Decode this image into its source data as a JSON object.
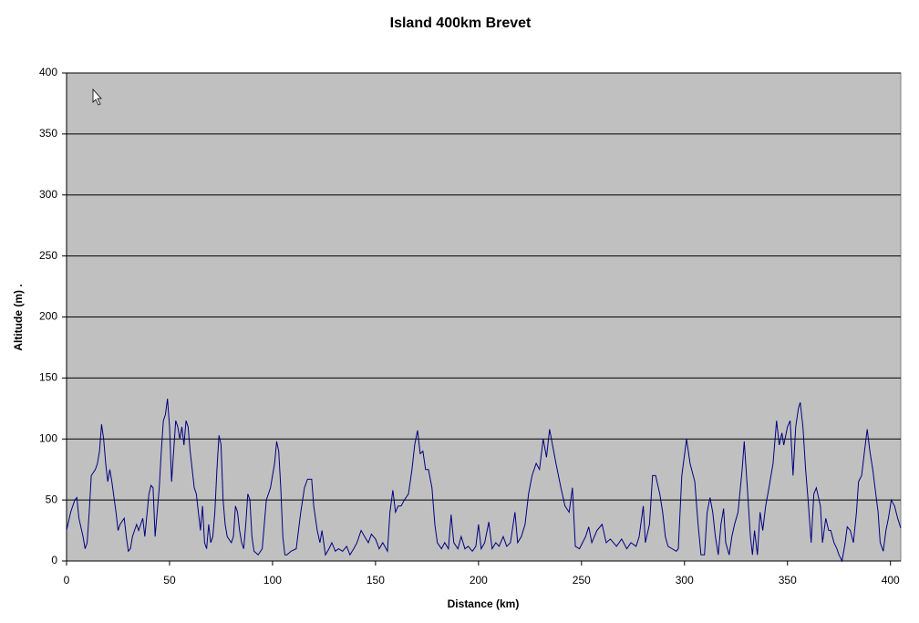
{
  "chart_data": {
    "type": "line",
    "title": "Island 400km Brevet",
    "x_label": "Distance (km)",
    "y_label": "Altitude (m) .",
    "color": "#000080",
    "grid": true,
    "xlim": [
      0,
      405
    ],
    "ylim": [
      0,
      400
    ],
    "xticks": [
      0,
      50,
      100,
      150,
      200,
      250,
      300,
      350,
      400
    ],
    "yticks": [
      0,
      50,
      100,
      150,
      200,
      250,
      300,
      350,
      400
    ],
    "x": [
      0,
      2,
      4,
      5,
      6,
      8,
      9,
      10,
      11,
      12,
      14,
      15,
      16,
      17,
      18,
      19,
      20,
      21,
      22,
      24,
      25,
      26,
      28,
      29,
      30,
      31,
      32,
      34,
      35,
      36,
      37,
      38,
      40,
      41,
      42,
      43,
      44,
      45,
      46,
      47,
      48,
      49,
      50,
      51,
      52,
      53,
      54,
      55,
      56,
      57,
      58,
      59,
      60,
      62,
      63,
      64,
      65,
      66,
      67,
      68,
      69,
      70,
      71,
      72,
      73,
      74,
      75,
      76,
      77,
      78,
      80,
      81,
      82,
      83,
      84,
      85,
      86,
      87,
      88,
      89,
      90,
      91,
      93,
      95,
      97,
      99,
      101,
      102,
      103,
      104,
      105,
      106,
      107,
      109,
      111.5,
      113.7,
      115.5,
      117,
      119,
      120,
      121.7,
      123,
      124,
      125.7,
      127.4,
      128.8,
      130.5,
      132,
      134,
      136,
      137.6,
      139.4,
      141,
      143,
      144.7,
      146.5,
      148,
      150,
      151.8,
      153.5,
      155.8,
      157,
      158.4,
      159.7,
      161,
      162.4,
      164,
      166,
      167.7,
      169,
      170.4,
      171.7,
      173,
      174.3,
      175.7,
      177.4,
      178.8,
      180,
      182,
      183.6,
      185.4,
      186.7,
      188,
      190,
      191.6,
      193.4,
      195,
      197,
      198.7,
      200,
      201.3,
      203,
      205,
      206.6,
      208.4,
      210,
      212,
      213.7,
      215.5,
      217.7,
      219,
      220.8,
      222.6,
      224.3,
      226,
      228,
      229.6,
      231.4,
      233,
      234.5,
      237.6,
      240,
      242,
      244,
      245.6,
      247,
      249,
      252,
      253.5,
      255,
      257.5,
      260,
      262,
      264,
      267,
      269.5,
      272,
      274,
      276.5,
      278,
      280,
      281,
      283,
      284.5,
      286,
      288,
      289.4,
      290.7,
      292,
      294,
      296,
      297,
      298.7,
      301,
      302.7,
      305,
      306.6,
      308,
      309.7,
      311,
      312.4,
      313.7,
      315,
      316.4,
      317.7,
      319,
      320,
      321.7,
      323,
      324.3,
      326,
      328,
      329,
      330.5,
      332,
      333,
      334,
      335.4,
      336.7,
      338,
      339.4,
      341,
      343,
      344.7,
      346,
      347.3,
      348.2,
      350,
      351.3,
      352.7,
      354,
      355.3,
      356.2,
      357.5,
      358.8,
      360,
      361.5,
      362.8,
      364,
      366,
      367,
      368.6,
      370,
      371,
      372.6,
      374,
      375,
      376.5,
      378,
      379,
      380.5,
      382,
      383.5,
      384.5,
      386,
      387.4,
      388.7,
      390,
      391.4,
      392.5,
      394,
      395,
      396.5,
      397.8,
      399,
      400.4,
      402,
      403.5,
      405
    ],
    "values": [
      25,
      40,
      50,
      52,
      35,
      20,
      10,
      15,
      40,
      70,
      75,
      80,
      90,
      112,
      100,
      80,
      65,
      75,
      65,
      40,
      25,
      30,
      35,
      20,
      8,
      10,
      20,
      30,
      25,
      30,
      35,
      20,
      55,
      62,
      60,
      20,
      40,
      60,
      90,
      115,
      120,
      133,
      110,
      65,
      90,
      115,
      110,
      100,
      110,
      95,
      115,
      110,
      90,
      60,
      55,
      40,
      25,
      45,
      15,
      10,
      30,
      15,
      20,
      40,
      75,
      103,
      95,
      50,
      30,
      20,
      15,
      20,
      45,
      40,
      25,
      15,
      10,
      30,
      55,
      50,
      20,
      8,
      5,
      10,
      50,
      60,
      80,
      98,
      90,
      60,
      20,
      5,
      5,
      8,
      10,
      40,
      60,
      67,
      67,
      45,
      25,
      15,
      25,
      5,
      10,
      15,
      8,
      10,
      8,
      12,
      5,
      10,
      15,
      25,
      20,
      15,
      22,
      18,
      10,
      15,
      8,
      40,
      58,
      40,
      45,
      45,
      50,
      55,
      75,
      95,
      107,
      88,
      90,
      75,
      75,
      60,
      30,
      15,
      10,
      15,
      10,
      38,
      15,
      10,
      20,
      10,
      12,
      8,
      12,
      30,
      10,
      15,
      32,
      10,
      15,
      12,
      20,
      12,
      15,
      40,
      15,
      20,
      30,
      55,
      70,
      80,
      75,
      100,
      85,
      108,
      80,
      60,
      45,
      40,
      60,
      12,
      10,
      20,
      28,
      15,
      25,
      30,
      15,
      18,
      12,
      18,
      10,
      15,
      12,
      20,
      45,
      15,
      30,
      70,
      70,
      55,
      40,
      20,
      12,
      10,
      8,
      10,
      70,
      100,
      80,
      65,
      30,
      5,
      5,
      40,
      52,
      40,
      20,
      5,
      30,
      43,
      15,
      5,
      20,
      30,
      40,
      75,
      98,
      60,
      20,
      5,
      25,
      5,
      40,
      25,
      45,
      60,
      80,
      115,
      95,
      105,
      95,
      110,
      115,
      70,
      110,
      125,
      130,
      110,
      75,
      50,
      15,
      55,
      60,
      45,
      15,
      35,
      25,
      25,
      15,
      10,
      5,
      0,
      15,
      28,
      25,
      15,
      40,
      65,
      70,
      90,
      108,
      90,
      75,
      60,
      40,
      15,
      8,
      25,
      35,
      50,
      45,
      35,
      27
    ]
  }
}
